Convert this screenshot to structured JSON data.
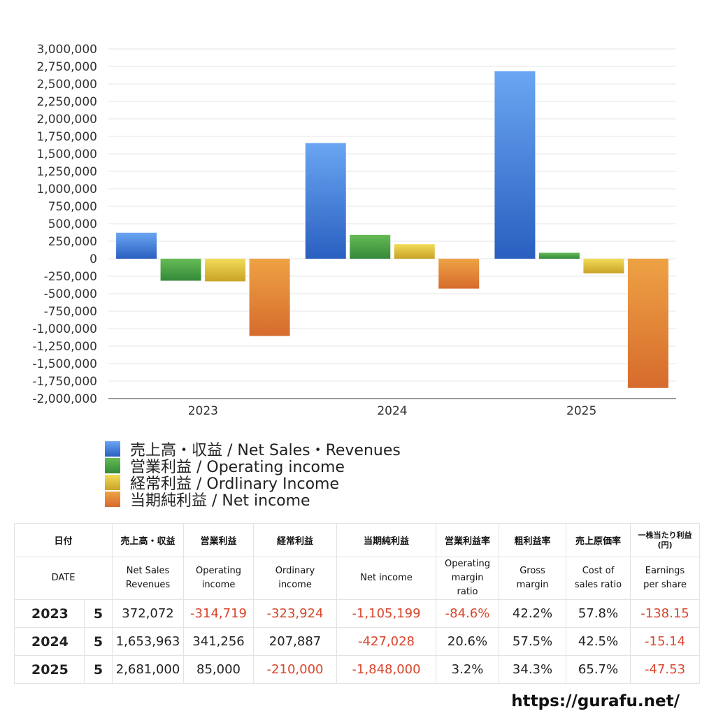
{
  "chart_data": {
    "type": "bar",
    "categories": [
      "2023",
      "2024",
      "2025"
    ],
    "ylim": [
      -2000000,
      3000000
    ],
    "ytick_step": 250000,
    "ytick_labels": [
      "3,000,000",
      "2,750,000",
      "2,500,000",
      "2,250,000",
      "2,000,000",
      "1,750,000",
      "1,500,000",
      "1,250,000",
      "1,000,000",
      "750,000",
      "500,000",
      "250,000",
      "0",
      "-250,000",
      "-500,000",
      "-750,000",
      "-1,000,000",
      "-1,250,000",
      "-1,500,000",
      "-1,750,000",
      "-2,000,000"
    ],
    "grid": true,
    "legend_position": "bottom-left",
    "series": [
      {
        "name": "売上高・収益 / Net Sales・Revenues",
        "values": [
          372072,
          1653963,
          2681000
        ],
        "color_top": "#6aa6f2",
        "color_bottom": "#2a5fc0"
      },
      {
        "name": "営業利益 / Operating income",
        "values": [
          -314719,
          341256,
          85000
        ],
        "color_top": "#66bb55",
        "color_bottom": "#34893a"
      },
      {
        "name": "経常利益 / Ordlinary Income",
        "values": [
          -323924,
          207887,
          -210000
        ],
        "color_top": "#f1dc57",
        "color_bottom": "#c9a227"
      },
      {
        "name": "当期純利益 / Net income",
        "values": [
          -1105199,
          -427028,
          -1848000
        ],
        "color_top": "#eea244",
        "color_bottom": "#d66b2d"
      }
    ]
  },
  "table": {
    "headers_ja": [
      "日付",
      "売上高・収益",
      "営業利益",
      "経常利益",
      "当期純利益",
      "営業利益率",
      "粗利益率",
      "売上原価率",
      "一株当たり利益",
      "(円)"
    ],
    "headers_en": [
      "DATE",
      "Net Sales",
      "Revenues",
      "Operating",
      "income",
      "Ordinary",
      "income",
      "Net income",
      "Operating",
      "margin",
      "ratio",
      "Gross",
      "margin",
      "Cost of",
      "sales ratio",
      "Earnings",
      "per share"
    ],
    "rows": [
      {
        "year": "2023",
        "month": "5",
        "cells": [
          {
            "v": "372,072",
            "neg": false
          },
          {
            "v": "-314,719",
            "neg": true
          },
          {
            "v": "-323,924",
            "neg": true
          },
          {
            "v": "-1,105,199",
            "neg": true
          },
          {
            "v": "-84.6%",
            "neg": true
          },
          {
            "v": "42.2%",
            "neg": false
          },
          {
            "v": "57.8%",
            "neg": false
          },
          {
            "v": "-138.15",
            "neg": true
          }
        ]
      },
      {
        "year": "2024",
        "month": "5",
        "cells": [
          {
            "v": "1,653,963",
            "neg": false
          },
          {
            "v": "341,256",
            "neg": false
          },
          {
            "v": "207,887",
            "neg": false
          },
          {
            "v": "-427,028",
            "neg": true
          },
          {
            "v": "20.6%",
            "neg": false
          },
          {
            "v": "57.5%",
            "neg": false
          },
          {
            "v": "42.5%",
            "neg": false
          },
          {
            "v": "-15.14",
            "neg": true
          }
        ]
      },
      {
        "year": "2025",
        "month": "5",
        "cells": [
          {
            "v": "2,681,000",
            "neg": false
          },
          {
            "v": "85,000",
            "neg": false
          },
          {
            "v": "-210,000",
            "neg": true
          },
          {
            "v": "-1,848,000",
            "neg": true
          },
          {
            "v": "3.2%",
            "neg": false
          },
          {
            "v": "34.3%",
            "neg": false
          },
          {
            "v": "65.7%",
            "neg": false
          },
          {
            "v": "-47.53",
            "neg": true
          }
        ]
      }
    ]
  },
  "footer": {
    "url": "https://gurafu.net/"
  }
}
